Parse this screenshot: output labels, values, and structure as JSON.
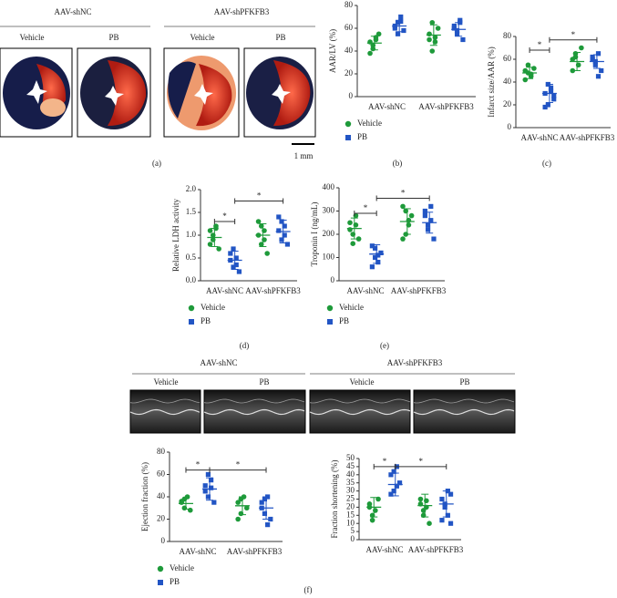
{
  "panel_a": {
    "groups": [
      {
        "title": "AAV-shNC",
        "labels": [
          "Vehicle",
          "PB"
        ]
      },
      {
        "title": "AAV-shPFKFB3",
        "labels": [
          "Vehicle",
          "PB"
        ]
      }
    ],
    "scale": "1 mm"
  },
  "panel_f_images": {
    "groups": [
      {
        "title": "AAV-shNC",
        "labels": [
          "Vehicle",
          "PB"
        ]
      },
      {
        "title": "AAV-shPFKFB3",
        "labels": [
          "Vehicle",
          "PB"
        ]
      }
    ]
  },
  "panel_labels": [
    "(a)",
    "(b)",
    "(c)",
    "(d)",
    "(e)",
    "(f)"
  ],
  "chart_data": [
    {
      "type": "dot",
      "ylabel": "AAR/LV (%)",
      "categories": [
        "AAV-shNC",
        "AAV-shPFKFB3"
      ],
      "ylim": [
        0,
        80
      ],
      "yticks": [
        0,
        20,
        40,
        60,
        80
      ],
      "legend": "bottom-left",
      "series": [
        {
          "name": "Vehicle",
          "color": "#1e9a3a",
          "marker": "circle",
          "values": [
            [
              48,
              42,
              50,
              55,
              38,
              45,
              52
            ],
            [
              55,
              65,
              48,
              60,
              50,
              40,
              52
            ]
          ],
          "mean": [
            47,
            54
          ],
          "sd": [
            6,
            9
          ]
        },
        {
          "name": "PB",
          "color": "#2255c4",
          "marker": "square",
          "values": [
            [
              60,
              65,
              70,
              58,
              62,
              55,
              66
            ],
            [
              60,
              55,
              65,
              50,
              62,
              58,
              67
            ]
          ],
          "mean": [
            62,
            59
          ],
          "sd": [
            5,
            6
          ]
        }
      ],
      "annotations": []
    },
    {
      "type": "dot",
      "ylabel": "Infarct size/AAR (%)",
      "categories": [
        "AAV-shNC",
        "AAV-shPFKFB3"
      ],
      "ylim": [
        0,
        80
      ],
      "yticks": [
        0,
        20,
        40,
        60,
        80
      ],
      "series": [
        {
          "name": "Vehicle",
          "color": "#1e9a3a",
          "marker": "circle",
          "values": [
            [
              50,
              48,
              45,
              52,
              42,
              55,
              47
            ],
            [
              60,
              65,
              55,
              70,
              50,
              62
            ]
          ],
          "mean": [
            48,
            58
          ],
          "sd": [
            5,
            8
          ]
        },
        {
          "name": "PB",
          "color": "#2255c4",
          "marker": "square",
          "values": [
            [
              30,
              20,
              35,
              25,
              18,
              38,
              32,
              28
            ],
            [
              60,
              55,
              65,
              50,
              62,
              58,
              45
            ]
          ],
          "mean": [
            30,
            58
          ],
          "sd": [
            8,
            6
          ]
        }
      ],
      "annotations": [
        {
          "text": "*",
          "y": 68
        },
        {
          "text": "*",
          "y": 77
        }
      ]
    },
    {
      "type": "dot",
      "ylabel": "Relative LDH activity",
      "categories": [
        "AAV-shNC",
        "AAV-shPFKFB3"
      ],
      "ylim": [
        0,
        2
      ],
      "yticks": [
        {
          "value": 0,
          "label": "0.0"
        },
        0.5,
        {
          "value": 1,
          "label": "1.0"
        },
        1.5,
        {
          "value": 2,
          "label": "2.0"
        }
      ],
      "legend": "bottom-left",
      "series": [
        {
          "name": "Vehicle",
          "color": "#1e9a3a",
          "marker": "circle",
          "values": [
            [
              1.1,
              0.9,
              1.2,
              0.7,
              0.8,
              1.0,
              1.15
            ],
            [
              1.3,
              0.8,
              1.1,
              0.6,
              1.0,
              1.2,
              0.9
            ]
          ],
          "mean": [
            0.95,
            1.0
          ],
          "sd": [
            0.2,
            0.25
          ]
        },
        {
          "name": "PB",
          "color": "#2255c4",
          "marker": "square",
          "values": [
            [
              0.6,
              0.3,
              0.5,
              0.2,
              0.45,
              0.7,
              0.35
            ],
            [
              1.4,
              0.9,
              1.2,
              0.8,
              1.1,
              1.3,
              1.0
            ]
          ],
          "mean": [
            0.45,
            1.08
          ],
          "sd": [
            0.2,
            0.25
          ]
        }
      ],
      "annotations": [
        {
          "text": "*",
          "y": 1.3
        },
        {
          "text": "*",
          "y": 1.75
        }
      ]
    },
    {
      "type": "dot",
      "ylabel": "Troponin I (ng/mL)",
      "categories": [
        "AAV-shNC",
        "AAV-shPFKFB3"
      ],
      "ylim": [
        0,
        400
      ],
      "yticks": [
        0,
        100,
        200,
        300,
        400
      ],
      "legend": "bottom-left",
      "series": [
        {
          "name": "Vehicle",
          "color": "#1e9a3a",
          "marker": "circle",
          "values": [
            [
              250,
              200,
              280,
              180,
              220,
              160,
              240
            ],
            [
              320,
              200,
              260,
              280,
              180,
              300,
              240
            ]
          ],
          "mean": [
            225,
            255
          ],
          "sd": [
            45,
            55
          ]
        },
        {
          "name": "PB",
          "color": "#2255c4",
          "marker": "square",
          "values": [
            [
              150,
              100,
              80,
              120,
              60,
              140,
              110
            ],
            [
              300,
              220,
              260,
              180,
              280,
              240,
              320
            ]
          ],
          "mean": [
            115,
            250
          ],
          "sd": [
            40,
            45
          ]
        }
      ],
      "annotations": [
        {
          "text": "*",
          "y": 290
        },
        {
          "text": "*",
          "y": 355
        }
      ]
    },
    {
      "type": "dot",
      "ylabel": "Ejection fraction (%)",
      "categories": [
        "AAV-shNC",
        "AAV-shPFKFB3"
      ],
      "ylim": [
        0,
        80
      ],
      "yticks": [
        0,
        20,
        40,
        60,
        80
      ],
      "legend": "bottom-left",
      "series": [
        {
          "name": "Vehicle",
          "color": "#1e9a3a",
          "marker": "circle",
          "values": [
            [
              35,
              30,
              40,
              28,
              36,
              38
            ],
            [
              35,
              25,
              40,
              30,
              20,
              38
            ]
          ],
          "mean": [
            34,
            32
          ],
          "sd": [
            5,
            8
          ]
        },
        {
          "name": "PB",
          "color": "#2255c4",
          "marker": "square",
          "values": [
            [
              50,
              40,
              55,
              35,
              45,
              60,
              48
            ],
            [
              35,
              25,
              40,
              20,
              30,
              38,
              15
            ]
          ],
          "mean": [
            47,
            30
          ],
          "sd": [
            10,
            10
          ]
        }
      ],
      "annotations": [
        {
          "text": "*",
          "y": 64
        },
        {
          "text": "*",
          "y": 64
        }
      ]
    },
    {
      "type": "dot",
      "ylabel": "Fraction shortening (%)",
      "categories": [
        "AAV-shNC",
        "AAV-shPFKFB3"
      ],
      "ylim": [
        0,
        50
      ],
      "yticks": [
        0,
        5,
        10,
        15,
        20,
        25,
        30,
        35,
        40,
        45,
        50
      ],
      "series": [
        {
          "name": "Vehicle",
          "color": "#1e9a3a",
          "marker": "circle",
          "values": [
            [
              22,
              15,
              18,
              25,
              20,
              12
            ],
            [
              25,
              15,
              20,
              10,
              22,
              18,
              24
            ]
          ],
          "mean": [
            20,
            21
          ],
          "sd": [
            6,
            7
          ]
        },
        {
          "name": "PB",
          "color": "#2255c4",
          "marker": "square",
          "values": [
            [
              40,
              30,
              45,
              35,
              28,
              42,
              33
            ],
            [
              25,
              20,
              15,
              28,
              12,
              22,
              30,
              10
            ]
          ],
          "mean": [
            34,
            22
          ],
          "sd": [
            7,
            8
          ]
        }
      ],
      "annotations": [
        {
          "text": "*",
          "y": 45
        },
        {
          "text": "*",
          "y": 45
        }
      ]
    }
  ]
}
